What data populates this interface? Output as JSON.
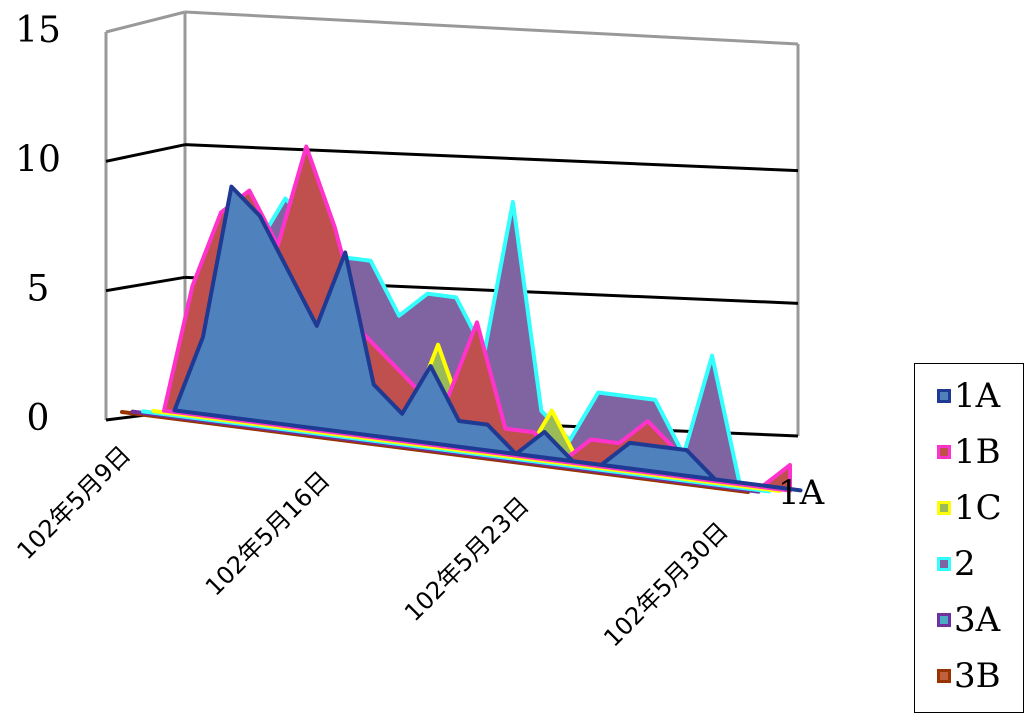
{
  "chart_data": {
    "type": "area",
    "view": "3d",
    "title": "",
    "xlabel": "",
    "ylabel": "",
    "ylim": [
      0,
      15
    ],
    "yticks": [
      0,
      5,
      10,
      15
    ],
    "x": [
      "102年5月9日",
      "102年5月10日",
      "102年5月11日",
      "102年5月12日",
      "102年5月13日",
      "102年5月14日",
      "102年5月15日",
      "102年5月16日",
      "102年5月17日",
      "102年5月18日",
      "102年5月19日",
      "102年5月20日",
      "102年5月21日",
      "102年5月22日",
      "102年5月23日",
      "102年5月24日",
      "102年5月25日",
      "102年5月26日",
      "102年5月27日",
      "102年5月28日",
      "102年5月29日",
      "102年5月30日",
      "102年5月31日"
    ],
    "x_tick_labels": [
      "102年5月9日",
      "102年5月16日",
      "102年5月23日",
      "102年5月30日"
    ],
    "depth_axis_label": "1A",
    "grid": true,
    "legend_position": "right",
    "series": [
      {
        "name": "1A",
        "color": "#4f81bd",
        "border": "#1f3a93",
        "values": [
          0,
          3,
          9,
          8,
          6,
          4,
          7,
          2,
          1,
          3,
          1,
          1,
          0,
          1,
          0,
          0,
          1,
          1,
          1,
          0,
          0,
          0,
          0
        ]
      },
      {
        "name": "1B",
        "color": "#c0504d",
        "border": "#ff33cc",
        "values": [
          0,
          5,
          8,
          9,
          7,
          11,
          8,
          4,
          3,
          2,
          2,
          5,
          1,
          1,
          0,
          1,
          1,
          2,
          1,
          0,
          0,
          0,
          1
        ]
      },
      {
        "name": "1C",
        "color": "#9bbb59",
        "border": "#ffff00",
        "values": [
          0,
          0,
          0,
          0,
          0,
          0,
          2,
          4,
          3,
          1,
          4,
          1,
          0,
          0,
          2,
          0,
          0,
          0,
          0,
          0,
          0,
          0,
          0
        ]
      },
      {
        "name": "2",
        "color": "#8064a2",
        "border": "#33ffff",
        "values": [
          0,
          0,
          0,
          0,
          7,
          9,
          8,
          7,
          7,
          5,
          6,
          6,
          4,
          10,
          2,
          1,
          3,
          3,
          3,
          1,
          5,
          0,
          0
        ]
      },
      {
        "name": "3A",
        "color": "#4bacc6",
        "border": "#7030a0",
        "values": [
          0,
          0,
          0,
          0,
          0,
          0,
          0,
          0,
          0,
          0,
          0,
          0,
          0,
          0,
          0,
          0,
          0,
          0,
          0,
          0,
          0,
          0,
          0
        ]
      },
      {
        "name": "3B",
        "color": "#c0603d",
        "border": "#993300",
        "values": [
          0,
          0,
          0,
          0,
          0,
          0,
          0,
          0,
          0,
          0,
          0,
          0,
          0,
          0,
          0,
          0,
          0,
          0,
          0,
          0,
          0,
          0,
          0
        ]
      }
    ]
  }
}
